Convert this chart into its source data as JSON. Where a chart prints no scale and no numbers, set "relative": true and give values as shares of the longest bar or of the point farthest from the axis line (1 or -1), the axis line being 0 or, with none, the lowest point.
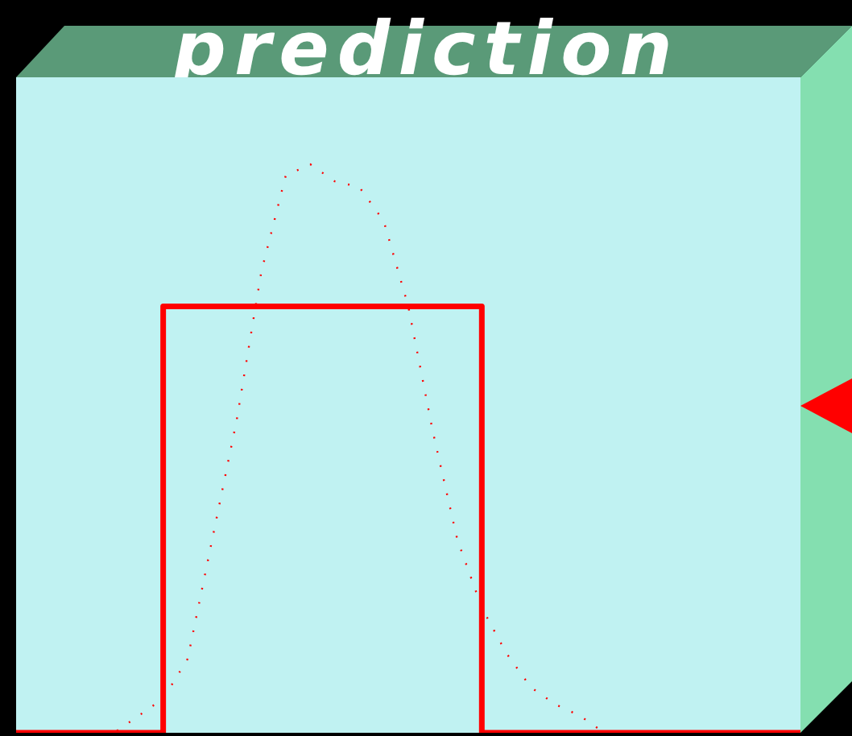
{
  "chart_data": {
    "type": "line",
    "title": "prediction",
    "relative": true,
    "marker": "none",
    "categories": [
      null,
      null,
      null,
      null,
      null,
      null,
      null,
      null,
      null,
      null,
      null,
      null,
      null,
      null,
      null,
      null,
      null,
      null,
      null,
      null,
      null,
      null,
      null,
      null,
      null,
      null,
      null,
      null,
      null,
      null,
      null,
      null,
      null
    ],
    "series": [
      {
        "type": "step",
        "color": "#ff0000",
        "line_style": "solid",
        "values": [
          0,
          0,
          0,
          0,
          0,
          0,
          0,
          0.75,
          0.75,
          0.75,
          0.75,
          0.75,
          0.75,
          0.75,
          0.75,
          0.75,
          0.75,
          0.75,
          0.75,
          0.75,
          0,
          0,
          0,
          0,
          0,
          0,
          0,
          0,
          0,
          0,
          0,
          0,
          0
        ]
      },
      {
        "type": "line",
        "color": "#ff0000",
        "line_style": "dotted",
        "values": [
          0,
          0,
          0,
          0,
          0,
          0.03,
          0.06,
          0.13,
          0.34,
          0.55,
          0.81,
          0.98,
          1,
          0.97,
          0.96,
          0.9,
          0.75,
          0.53,
          0.34,
          0.22,
          0.14,
          0.08,
          0.05,
          0.03,
          0,
          0,
          0,
          0,
          0,
          0,
          0,
          0,
          0
        ]
      }
    ]
  }
}
